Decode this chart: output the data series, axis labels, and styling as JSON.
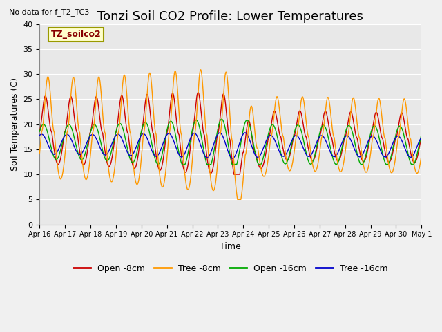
{
  "title": "Tonzi Soil CO2 Profile: Lower Temperatures",
  "no_data_text": "No data for f_T2_TC3",
  "legend_box_label": "TZ_soilco2",
  "xlabel": "Time",
  "ylabel": "Soil Temperatures (C)",
  "ylim": [
    0,
    40
  ],
  "yticks": [
    0,
    5,
    10,
    15,
    20,
    25,
    30,
    35,
    40
  ],
  "background_color": "#e8e8e8",
  "line_colors": {
    "open_8cm": "#cc0000",
    "tree_8cm": "#ff9900",
    "open_16cm": "#00aa00",
    "tree_16cm": "#0000cc"
  },
  "legend_labels": [
    "Open -8cm",
    "Tree -8cm",
    "Open -16cm",
    "Tree -16cm"
  ],
  "x_tick_labels": [
    "Apr 16",
    "Apr 17",
    "Apr 18",
    "Apr 19",
    "Apr 20",
    "Apr 21",
    "Apr 22",
    "Apr 23",
    "Apr 24",
    "Apr 25",
    "Apr 26",
    "Apr 27",
    "Apr 28",
    "Apr 29",
    "Apr 30",
    "May 1"
  ],
  "title_fontsize": 13,
  "axis_fontsize": 9,
  "tick_fontsize": 8
}
